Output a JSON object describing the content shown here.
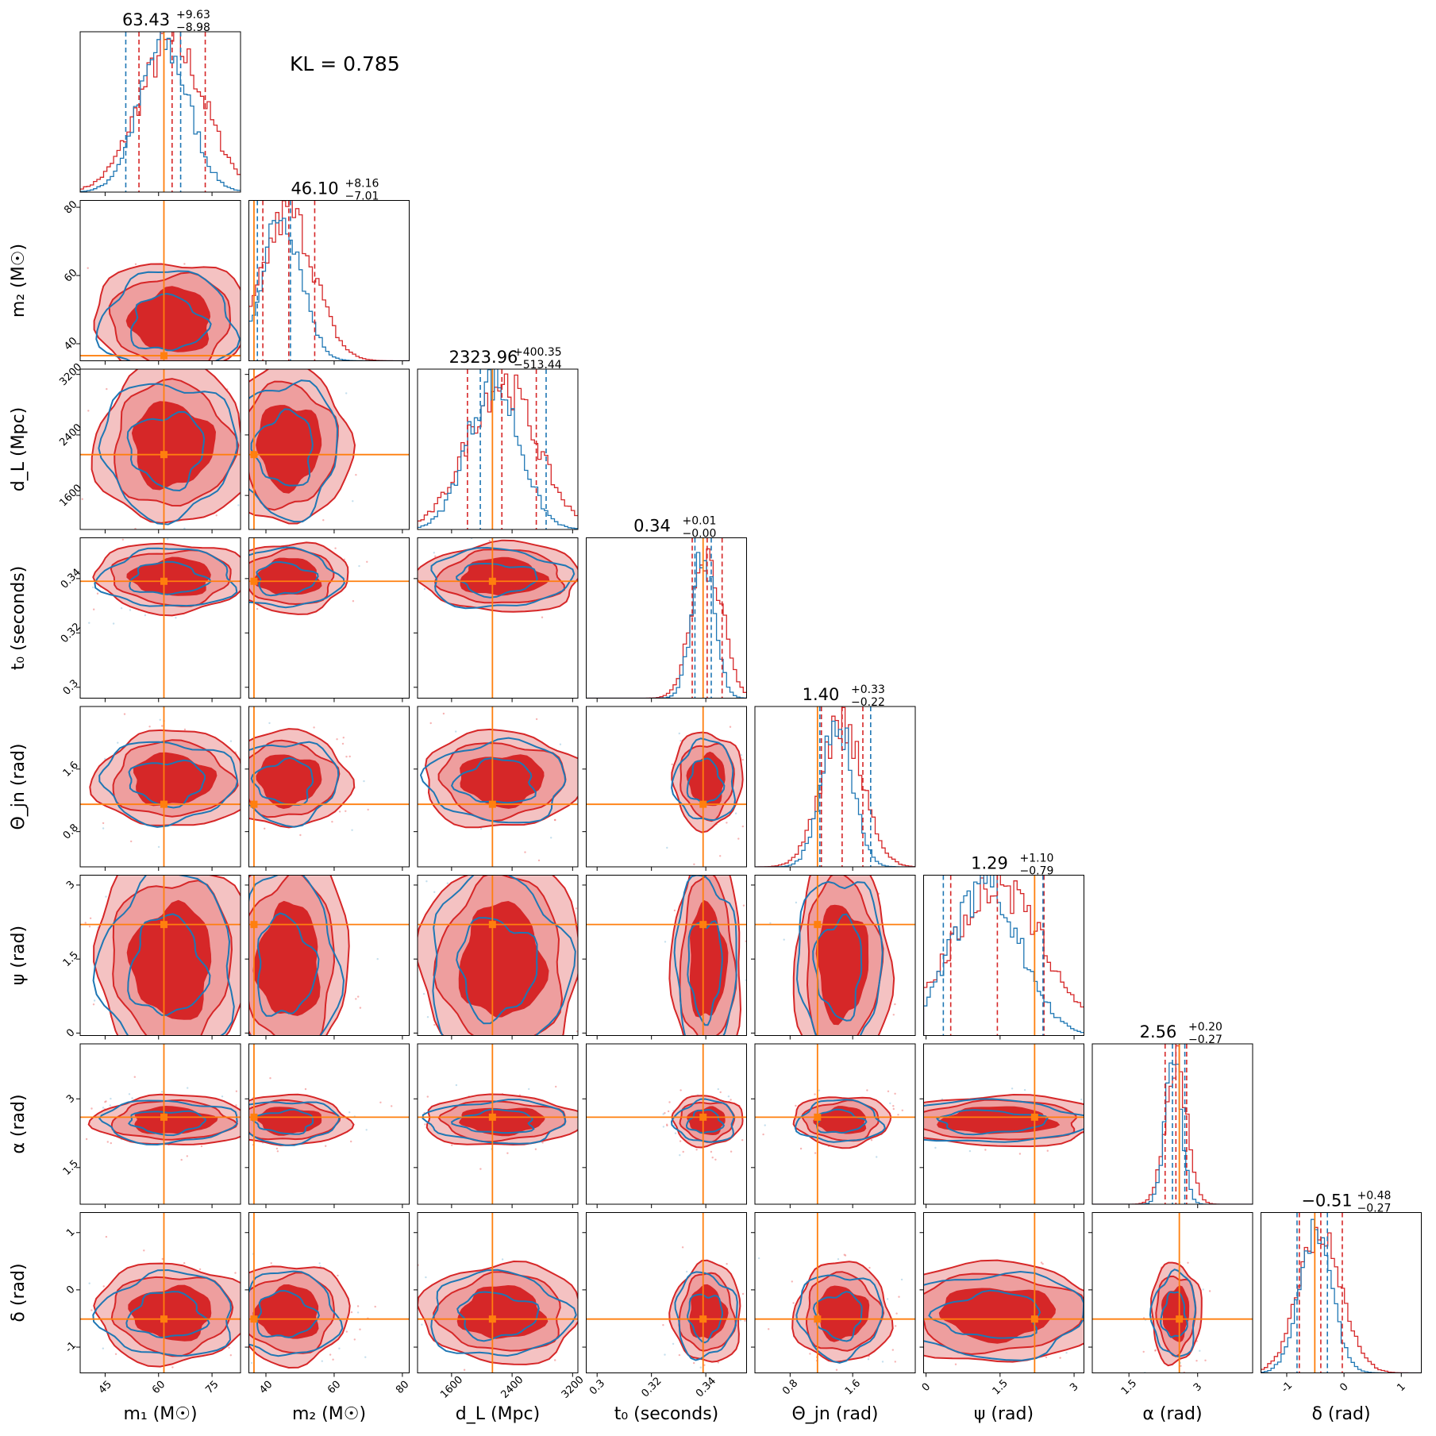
{
  "kl_text": "KL = 0.785",
  "colors": {
    "red": "#d62728",
    "red_light": "#ef9a9a",
    "red_fill": "#f4c2c2",
    "blue": "#1f77b4",
    "truth": "#ff7f0e"
  },
  "chart_data": {
    "type": "corner",
    "parameters": [
      {
        "id": "m1",
        "label": "m₁ (M☉)",
        "title": "63.43",
        "plus": "+9.63",
        "minus": "−8.98",
        "range": [
          38,
          83
        ],
        "ticks": [
          45,
          60,
          75
        ],
        "truth": 61.5,
        "q_red": [
          54.5,
          73.1
        ],
        "q_blue": [
          50.8,
          66.2
        ]
      },
      {
        "id": "m2",
        "label": "m₂ (M☉)",
        "title": "46.10",
        "plus": "+8.16",
        "minus": "−7.01",
        "range": [
          35,
          82
        ],
        "ticks": [
          40,
          60,
          80
        ],
        "truth": 36.5,
        "q_red": [
          39.1,
          54.3
        ],
        "q_blue": [
          37.5,
          47.2
        ]
      },
      {
        "id": "dL",
        "label": "d_L (Mpc)",
        "title": "2323.96",
        "plus": "+400.35",
        "minus": "−513.44",
        "range": [
          1150,
          3270
        ],
        "ticks": [
          1600,
          2400,
          3200
        ],
        "truth": 2140,
        "q_red": [
          1810,
          2720
        ],
        "q_blue": [
          1980,
          2850
        ]
      },
      {
        "id": "t0",
        "label": "t₀ (seconds)",
        "title": "0.34",
        "plus": "+0.01",
        "minus": "−0.00",
        "range": [
          0.296,
          0.355
        ],
        "ticks": [
          0.3,
          0.32,
          0.34
        ],
        "truth": 0.339,
        "q_red": [
          0.335,
          0.346
        ],
        "q_blue": [
          0.336,
          0.342
        ]
      },
      {
        "id": "theta",
        "label": "Θ_jn (rad)",
        "title": "1.40",
        "plus": "+0.33",
        "minus": "−0.22",
        "range": [
          0.35,
          2.4
        ],
        "ticks": [
          0.8,
          1.6
        ],
        "truth": 1.15,
        "q_red": [
          1.2,
          1.73
        ],
        "q_blue": [
          1.18,
          1.83
        ]
      },
      {
        "id": "psi",
        "label": "ψ (rad)",
        "title": "1.29",
        "plus": "+1.10",
        "minus": "−0.79",
        "range": [
          -0.05,
          3.2
        ],
        "ticks": [
          0.0,
          1.5,
          3.0
        ],
        "truth": 2.2,
        "q_red": [
          0.5,
          2.39
        ],
        "q_blue": [
          0.35,
          2.37
        ]
      },
      {
        "id": "alpha",
        "label": "α (rad)",
        "title": "2.56",
        "plus": "+0.20",
        "minus": "−0.27",
        "range": [
          0.7,
          4.2
        ],
        "ticks": [
          1.5,
          3.0
        ],
        "truth": 2.6,
        "q_red": [
          2.29,
          2.76
        ],
        "q_blue": [
          2.45,
          2.72
        ]
      },
      {
        "id": "delta",
        "label": "δ (rad)",
        "title": "−0.51",
        "plus": "+0.48",
        "minus": "−0.27",
        "range": [
          -1.45,
          1.35
        ],
        "ticks": [
          -1,
          0,
          1
        ],
        "truth": -0.51,
        "q_red": [
          -0.78,
          -0.03
        ],
        "q_blue": [
          -0.82,
          -0.29
        ]
      }
    ],
    "series": [
      {
        "color": "red",
        "style": "filled contours"
      },
      {
        "color": "blue",
        "style": "line contours"
      }
    ]
  }
}
